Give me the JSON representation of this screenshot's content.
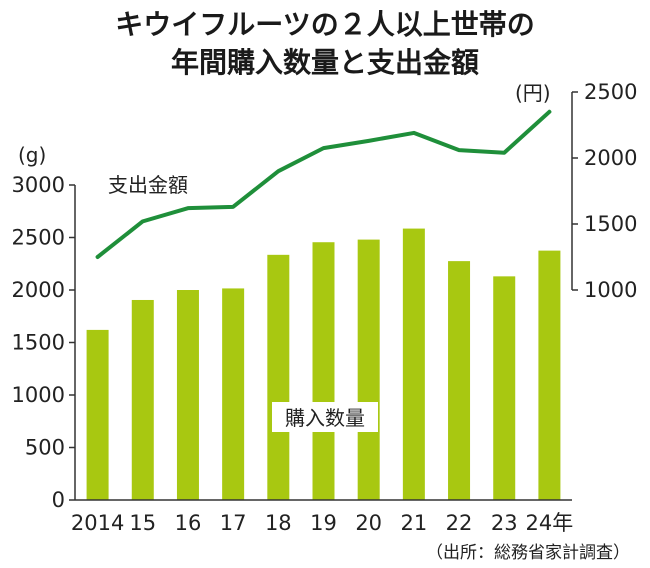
{
  "chart_data": {
    "type": "bar+line",
    "title_lines": [
      "キウイフルーツの２人以上世帯の",
      "年間購入数量と支出金額"
    ],
    "categories": [
      "2014",
      "15",
      "16",
      "17",
      "18",
      "19",
      "20",
      "21",
      "22",
      "23",
      "24年"
    ],
    "bar_series": {
      "name": "購入数量",
      "unit": "(g)",
      "values": [
        1620,
        1905,
        2000,
        2015,
        2335,
        2455,
        2480,
        2585,
        2275,
        2130,
        2375
      ],
      "color": "#a8c811"
    },
    "line_series": {
      "name": "支出金額",
      "unit": "(円)",
      "values": [
        1250,
        1520,
        1620,
        1630,
        1900,
        2075,
        2130,
        2190,
        2060,
        2040,
        2350
      ],
      "color": "#1f8f3a"
    },
    "left_axis": {
      "ticks": [
        0,
        500,
        1000,
        1500,
        2000,
        2500,
        3000
      ],
      "ylim": [
        0,
        3000
      ]
    },
    "right_axis": {
      "ticks": [
        1000,
        1500,
        2000,
        2500
      ],
      "ylim": [
        1000,
        2500
      ]
    },
    "source": "（出所：総務省家計調査）"
  }
}
